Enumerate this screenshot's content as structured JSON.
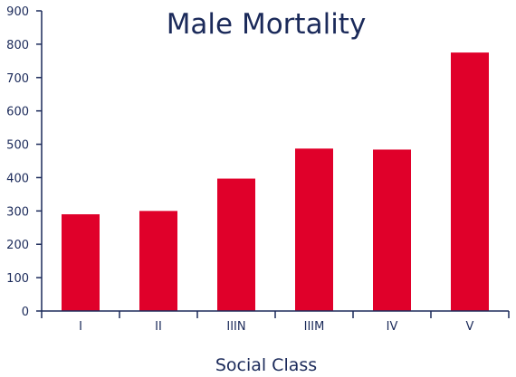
{
  "chart_data": {
    "type": "bar",
    "title": "Male Mortality",
    "xlabel": "Social Class",
    "ylabel": "",
    "categories": [
      "I",
      "II",
      "IIIN",
      "IIIM",
      "IV",
      "V"
    ],
    "values": [
      290,
      300,
      397,
      487,
      484,
      775
    ],
    "ylim": [
      0,
      900
    ],
    "yticks": [
      0,
      100,
      200,
      300,
      400,
      500,
      600,
      700,
      800,
      900
    ],
    "grid": false,
    "legend": "none",
    "colors": {
      "bar": "#e0002a",
      "axis": "#1b2a5a",
      "text": "#1b2a5a"
    }
  }
}
